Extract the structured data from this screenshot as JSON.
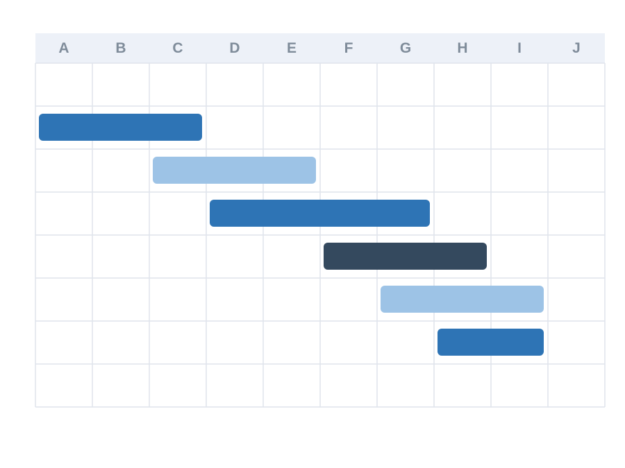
{
  "columns": [
    "A",
    "B",
    "C",
    "D",
    "E",
    "F",
    "G",
    "H",
    "I",
    "J"
  ],
  "rows": [
    null,
    {
      "start": "A",
      "end": "C",
      "color": "#2e74b5"
    },
    {
      "start": "C",
      "end": "E",
      "color": "#9dc3e6"
    },
    {
      "start": "D",
      "end": "G",
      "color": "#2e74b5"
    },
    {
      "start": "F",
      "end": "H",
      "color": "#34495e"
    },
    {
      "start": "G",
      "end": "I",
      "color": "#9dc3e6"
    },
    {
      "start": "H",
      "end": "I",
      "color": "#2e74b5"
    },
    null
  ]
}
